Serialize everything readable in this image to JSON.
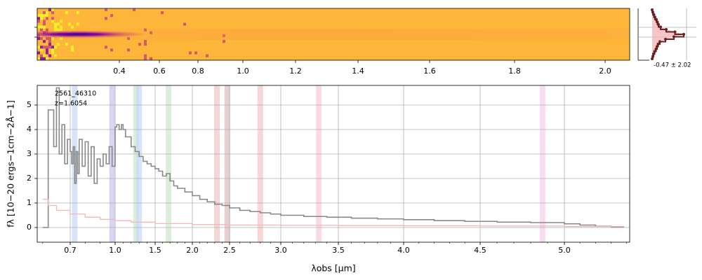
{
  "chart_data": [
    {
      "type": "heatmap",
      "panel": "2d-spectrum",
      "top_tick_labels": [
        "0.4",
        "0.6",
        "0.8",
        "1.0",
        "1.2",
        "1.4",
        "1.6",
        "1.8",
        "2.0"
      ],
      "bottom_tick_labels": [
        "0.7",
        "1.0",
        "1.5",
        "2.0",
        "2.5",
        "3.0",
        "3.5",
        "4.0",
        "4.5",
        "5.0"
      ],
      "colormap": "plasma",
      "colors": [
        "#0d0887",
        "#7e03a8",
        "#cc4778",
        "#f89540",
        "#f0f921"
      ]
    },
    {
      "type": "line",
      "panel": "spatial-profile",
      "annotation": "-0.47 ± 2.02",
      "fill_color": "#f4b6b6",
      "line_color": "#6b1f1f",
      "y": [
        0.0,
        0.05,
        0.1,
        0.15,
        0.2,
        0.25,
        0.3,
        0.35,
        0.4,
        0.45,
        0.5,
        0.55,
        0.6,
        0.65,
        0.7,
        0.75,
        0.8,
        0.85,
        0.9,
        0.95,
        1.0
      ],
      "values": [
        0.0,
        0.02,
        0.05,
        0.08,
        0.12,
        0.15,
        0.18,
        0.24,
        0.4,
        0.65,
        0.9,
        0.62,
        0.38,
        0.22,
        0.17,
        0.14,
        0.11,
        0.07,
        0.04,
        0.02,
        0.0
      ]
    },
    {
      "type": "line",
      "panel": "1d-spectrum",
      "text_label_lines": [
        "2561_46310",
        "z=1.6054"
      ],
      "xlabel": "λobs [μm]",
      "ylabel": "fλ [10−20 ergs−1cm−2Å−1]",
      "xlim": [
        0.58,
        5.42
      ],
      "ylim": [
        -0.6,
        5.8
      ],
      "x_scale": "nonlinear",
      "x_ticks": [
        0.7,
        1.0,
        1.5,
        2.0,
        2.5,
        3.0,
        3.5,
        4.0,
        4.5,
        5.0
      ],
      "x_tick_labels": [
        "0.7",
        "1.0",
        "1.5",
        "2.0",
        "2.5",
        "3.0",
        "3.5",
        "4.0",
        "4.5",
        "5.0"
      ],
      "y_ticks": [
        0,
        1,
        2,
        3,
        4,
        5
      ],
      "y_tick_labels": [
        "0",
        "1",
        "2",
        "3",
        "4",
        "5"
      ],
      "grid": true,
      "series": [
        {
          "color": "#888888",
          "x": [
            0.6,
            0.62,
            0.64,
            0.65,
            0.66,
            0.67,
            0.68,
            0.69,
            0.7,
            0.71,
            0.72,
            0.73,
            0.74,
            0.75,
            0.76,
            0.78,
            0.8,
            0.82,
            0.84,
            0.86,
            0.88,
            0.9,
            0.92,
            0.94,
            0.96,
            0.98,
            1.0,
            1.02,
            1.05,
            1.08,
            1.1,
            1.13,
            1.16,
            1.2,
            1.25,
            1.3,
            1.35,
            1.4,
            1.45,
            1.5,
            1.55,
            1.6,
            1.65,
            1.7,
            1.75,
            1.8,
            1.9,
            2.0,
            2.1,
            2.2,
            2.3,
            2.4,
            2.5,
            2.6,
            2.7,
            2.8,
            2.9,
            3.0,
            3.2,
            3.4,
            3.6,
            3.8,
            4.0,
            4.2,
            4.4,
            4.6,
            4.8,
            5.0,
            5.1,
            5.2,
            5.3,
            5.38
          ],
          "values": [
            0.0,
            4.8,
            3.3,
            5.7,
            3.0,
            4.2,
            2.6,
            3.6,
            3.1,
            2.6,
            3.3,
            1.8,
            3.1,
            2.2,
            3.6,
            2.5,
            3.5,
            2.1,
            3.3,
            1.8,
            2.8,
            2.5,
            3.0,
            2.6,
            3.3,
            2.5,
            4.1,
            4.2,
            4.0,
            4.2,
            4.0,
            3.7,
            3.7,
            3.3,
            3.1,
            2.9,
            2.7,
            2.6,
            2.5,
            2.4,
            2.3,
            2.1,
            2.2,
            1.9,
            1.7,
            1.6,
            1.45,
            1.3,
            1.15,
            1.05,
            0.95,
            0.9,
            0.8,
            0.7,
            0.65,
            0.6,
            0.55,
            0.5,
            0.45,
            0.42,
            0.38,
            0.35,
            0.32,
            0.28,
            0.25,
            0.22,
            0.2,
            0.15,
            0.1,
            0.05,
            0.02,
            0.0
          ]
        },
        {
          "color": "#f4b6b6",
          "x": [
            0.6,
            0.62,
            0.65,
            0.7,
            0.8,
            0.9,
            1.0,
            1.2,
            1.5,
            2.0,
            2.5,
            3.0,
            3.5,
            4.0,
            4.5,
            5.0,
            5.38
          ],
          "values": [
            1.15,
            0.9,
            0.7,
            0.55,
            0.42,
            0.33,
            0.28,
            0.22,
            0.16,
            0.12,
            0.1,
            0.09,
            0.08,
            0.07,
            0.06,
            0.04,
            0.03
          ]
        }
      ],
      "line_bands": [
        {
          "x": 0.73,
          "color": "#c8daf5"
        },
        {
          "x": 0.98,
          "color": "#c8c8f0"
        },
        {
          "x": 1.26,
          "color": "#cfe8cf"
        },
        {
          "x": 1.3,
          "color": "#c8daf5"
        },
        {
          "x": 1.68,
          "color": "#cfe8cf"
        },
        {
          "x": 2.33,
          "color": "#f0c8c8"
        },
        {
          "x": 2.47,
          "color": "#e0c0c0"
        },
        {
          "x": 2.8,
          "color": "#f5c8c8"
        },
        {
          "x": 3.33,
          "color": "#f5d0dc"
        },
        {
          "x": 4.87,
          "color": "#f5d0ec"
        }
      ]
    }
  ]
}
